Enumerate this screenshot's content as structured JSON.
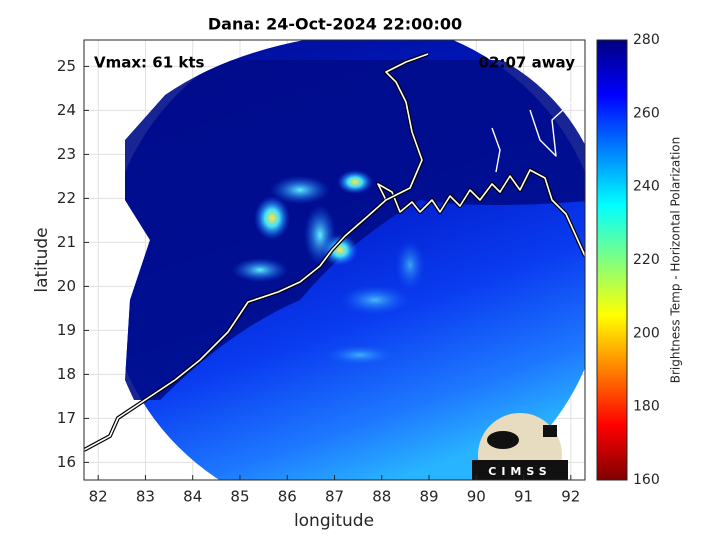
{
  "chart_data": {
    "type": "map",
    "title": "Dana: 24-Oct-2024 22:00:00",
    "xlabel": "longitude",
    "ylabel": "latitude",
    "xlim": [
      81.7,
      92.3
    ],
    "ylim": [
      15.6,
      25.6
    ],
    "xticks": [
      82,
      83,
      84,
      85,
      86,
      87,
      88,
      89,
      90,
      91,
      92
    ],
    "yticks": [
      16,
      17,
      18,
      19,
      20,
      21,
      22,
      23,
      24,
      25
    ],
    "grid": true,
    "annotations": [
      "Vmax: 61 kts",
      "02:07 away"
    ],
    "colorbar": {
      "label": "Brightness Temp - Horizontal Polarization",
      "lim": [
        160,
        280
      ],
      "ticks": [
        160,
        180,
        200,
        220,
        240,
        260,
        280
      ],
      "colormap": "jet"
    },
    "logo": "CIMSS"
  }
}
